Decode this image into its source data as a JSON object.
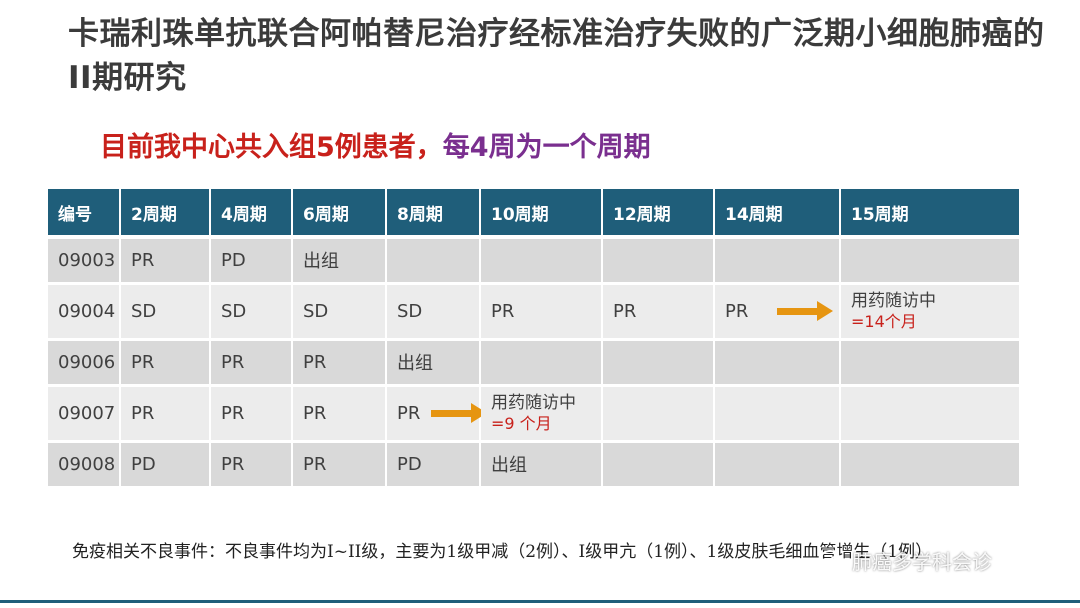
{
  "slide": {
    "title": "卡瑞利珠单抗联合阿帕替尼治疗经标准治疗失败的广泛期小细胞肺癌的II期研究",
    "subtitle_red": "目前我中心共入组5例患者，",
    "subtitle_purple": "每4周为一个周期"
  },
  "table": {
    "headers": [
      "编号",
      "2周期",
      "4周期",
      "6周期",
      "8周期",
      "10周期",
      "12周期",
      "14周期",
      "15周期"
    ],
    "rows": [
      {
        "id": "09003",
        "cells": [
          "PR",
          "PD",
          "出组",
          "",
          "",
          "",
          "",
          ""
        ]
      },
      {
        "id": "09004",
        "cells": [
          "SD",
          "SD",
          "SD",
          "SD",
          "PR",
          "PR",
          "PR",
          ""
        ],
        "note": {
          "line1": "用药随访中",
          "line2": "=14个月"
        }
      },
      {
        "id": "09006",
        "cells": [
          "PR",
          "PR",
          "PR",
          "出组",
          "",
          "",
          "",
          ""
        ]
      },
      {
        "id": "09007",
        "cells": [
          "PR",
          "PR",
          "PR",
          "PR",
          "",
          "",
          "",
          ""
        ],
        "note": {
          "line1": "用药随访中",
          "line2": "=9 个月"
        }
      },
      {
        "id": "09008",
        "cells": [
          "PD",
          "PR",
          "PR",
          "PD",
          "出组",
          "",
          "",
          ""
        ]
      }
    ]
  },
  "footnote": "免疫相关不良事件：不良事件均为I~II级，主要为1级甲减（2例）、I级甲亢（1例）、1级皮肤毛细血管增生（1例）",
  "watermark": "肺癌多学科会诊",
  "colors": {
    "header_bg": "#1f5e7a",
    "arrow": "#e69511",
    "red": "#c8211b",
    "purple": "#7a2f8f"
  }
}
